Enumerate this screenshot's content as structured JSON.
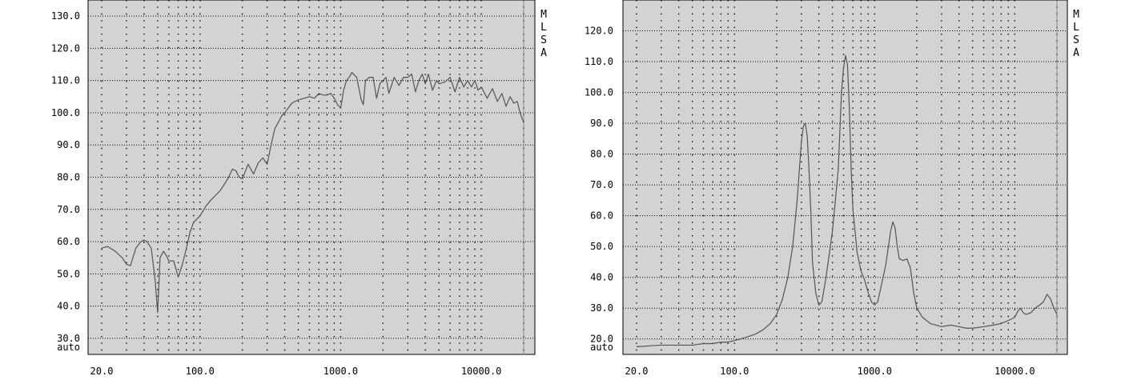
{
  "chart_data": [
    {
      "type": "line",
      "title": "",
      "xlabel": "",
      "ylabel": "",
      "x_scale": "log",
      "xlim": [
        20,
        20000
      ],
      "ylim": [
        25,
        135
      ],
      "grid": true,
      "side_label": [
        "M",
        "L",
        "S",
        "A"
      ],
      "y_tick_labels": [
        "130.0",
        "120.0",
        "110.0",
        "100.0",
        "90.0",
        "80.0",
        "70.0",
        "60.0",
        "50.0",
        "40.0",
        "30.0",
        "auto"
      ],
      "y_tick_values": [
        130,
        120,
        110,
        100,
        90,
        80,
        70,
        60,
        50,
        40,
        30,
        25
      ],
      "x_tick_labels": [
        "20.0",
        "100.0",
        "1000.0",
        "10000.0"
      ],
      "x_tick_values": [
        20,
        100,
        1000,
        10000
      ],
      "line_color": "#555555",
      "plot_bg": "#d3d3d3",
      "series": [
        {
          "name": "",
          "x": [
            20,
            22,
            25,
            28,
            30,
            32,
            35,
            38,
            40,
            42,
            45,
            48,
            50,
            52,
            55,
            58,
            60,
            65,
            70,
            75,
            80,
            85,
            90,
            95,
            100,
            110,
            120,
            130,
            140,
            150,
            160,
            170,
            180,
            190,
            200,
            220,
            240,
            260,
            280,
            300,
            320,
            340,
            360,
            380,
            400,
            450,
            500,
            550,
            600,
            650,
            700,
            750,
            800,
            850,
            900,
            950,
            1000,
            1050,
            1100,
            1150,
            1200,
            1300,
            1400,
            1450,
            1500,
            1600,
            1700,
            1800,
            1900,
            2000,
            2100,
            2200,
            2400,
            2600,
            2800,
            3000,
            3200,
            3400,
            3600,
            3800,
            4000,
            4200,
            4500,
            4800,
            5000,
            5500,
            6000,
            6500,
            7000,
            7500,
            8000,
            8500,
            9000,
            9500,
            10000,
            11000,
            12000,
            13000,
            14000,
            15000,
            16000,
            17000,
            18000,
            19000,
            20000
          ],
          "y": [
            58,
            58.5,
            57,
            55,
            53,
            52.5,
            58,
            60,
            60.5,
            60,
            58,
            48,
            38,
            55,
            57,
            55.5,
            54,
            54,
            49,
            53,
            58,
            63,
            66,
            67,
            68,
            71,
            73,
            74.5,
            76,
            78,
            80,
            82.5,
            82,
            80,
            79.5,
            84,
            81,
            84.5,
            86,
            84,
            90,
            95,
            97,
            99,
            100,
            103,
            104,
            104.5,
            105,
            104.5,
            106,
            105.5,
            105.5,
            106,
            104.5,
            102.5,
            101.5,
            107,
            110,
            111,
            112.5,
            111,
            104,
            102.5,
            110,
            111,
            111,
            104.5,
            109,
            110,
            111,
            106,
            111,
            108.5,
            111,
            111,
            112,
            106.5,
            110,
            112,
            109,
            112,
            107,
            110,
            109,
            109.5,
            111,
            106.5,
            111,
            108,
            110,
            108,
            110,
            107,
            108,
            104.5,
            107.5,
            103.5,
            106,
            102,
            105,
            103,
            103.5,
            99.5,
            97
          ]
        }
      ]
    },
    {
      "type": "line",
      "title": "",
      "xlabel": "",
      "ylabel": "",
      "x_scale": "log",
      "xlim": [
        20,
        20000
      ],
      "ylim": [
        15,
        130
      ],
      "grid": true,
      "side_label": [
        "M",
        "L",
        "S",
        "A"
      ],
      "y_tick_labels": [
        "120.0",
        "110.0",
        "100.0",
        "90.0",
        "80.0",
        "70.0",
        "60.0",
        "50.0",
        "40.0",
        "30.0",
        "20.0",
        "auto"
      ],
      "y_tick_values": [
        120,
        110,
        100,
        90,
        80,
        70,
        60,
        50,
        40,
        30,
        20,
        15
      ],
      "x_tick_labels": [
        "20.0",
        "100.0",
        "1000.0",
        "10000.0"
      ],
      "x_tick_values": [
        20,
        100,
        1000,
        10000
      ],
      "line_color": "#555555",
      "plot_bg": "#d3d3d3",
      "series": [
        {
          "name": "",
          "x": [
            20,
            30,
            40,
            50,
            60,
            70,
            80,
            90,
            100,
            110,
            120,
            140,
            160,
            180,
            200,
            220,
            240,
            260,
            280,
            300,
            310,
            320,
            330,
            340,
            350,
            360,
            380,
            400,
            420,
            450,
            500,
            550,
            580,
            600,
            620,
            640,
            660,
            680,
            700,
            750,
            800,
            850,
            900,
            950,
            1000,
            1050,
            1100,
            1200,
            1300,
            1350,
            1400,
            1450,
            1500,
            1600,
            1700,
            1800,
            1900,
            2000,
            2200,
            2500,
            3000,
            3500,
            4000,
            4500,
            5000,
            6000,
            7000,
            8000,
            9000,
            10000,
            10500,
            11000,
            11500,
            12000,
            13000,
            14000,
            15000,
            16000,
            17000,
            18000,
            19000,
            20000
          ],
          "y": [
            17.5,
            18,
            18,
            18,
            18.5,
            18.5,
            19,
            19,
            19.5,
            20,
            20.5,
            21.5,
            23,
            25,
            28,
            33,
            40,
            50,
            65,
            84,
            89,
            90,
            86,
            75,
            62,
            45,
            35,
            31,
            32,
            40,
            55,
            75,
            100,
            108,
            112,
            109,
            95,
            75,
            62,
            48,
            42,
            39,
            35,
            32,
            31,
            32,
            36,
            44,
            55,
            58,
            56,
            50,
            46,
            45.5,
            46,
            43,
            35,
            30,
            27,
            25,
            24,
            24.5,
            24,
            23.5,
            23.5,
            24,
            24.5,
            25,
            26,
            27,
            29,
            30,
            28.5,
            28,
            28.5,
            30,
            31,
            32,
            34.5,
            33,
            30,
            28
          ]
        }
      ]
    }
  ]
}
